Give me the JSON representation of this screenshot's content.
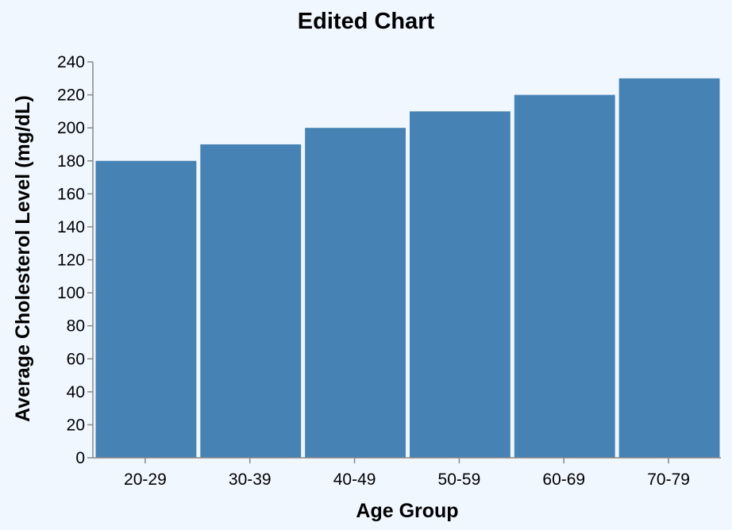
{
  "chart_data": {
    "type": "bar",
    "title": "Edited Chart",
    "xlabel": "Age Group",
    "ylabel": "Average Cholesterol Level (mg/dL)",
    "categories": [
      "20-29",
      "30-39",
      "40-49",
      "50-59",
      "60-69",
      "70-79"
    ],
    "values": [
      180,
      190,
      200,
      210,
      220,
      230
    ],
    "ylim": [
      0,
      240
    ],
    "yticks": [
      0,
      20,
      40,
      60,
      80,
      100,
      120,
      140,
      160,
      180,
      200,
      220,
      240
    ],
    "grid": false,
    "bar_color": "#4682b4",
    "background": "#f0f7ff"
  }
}
